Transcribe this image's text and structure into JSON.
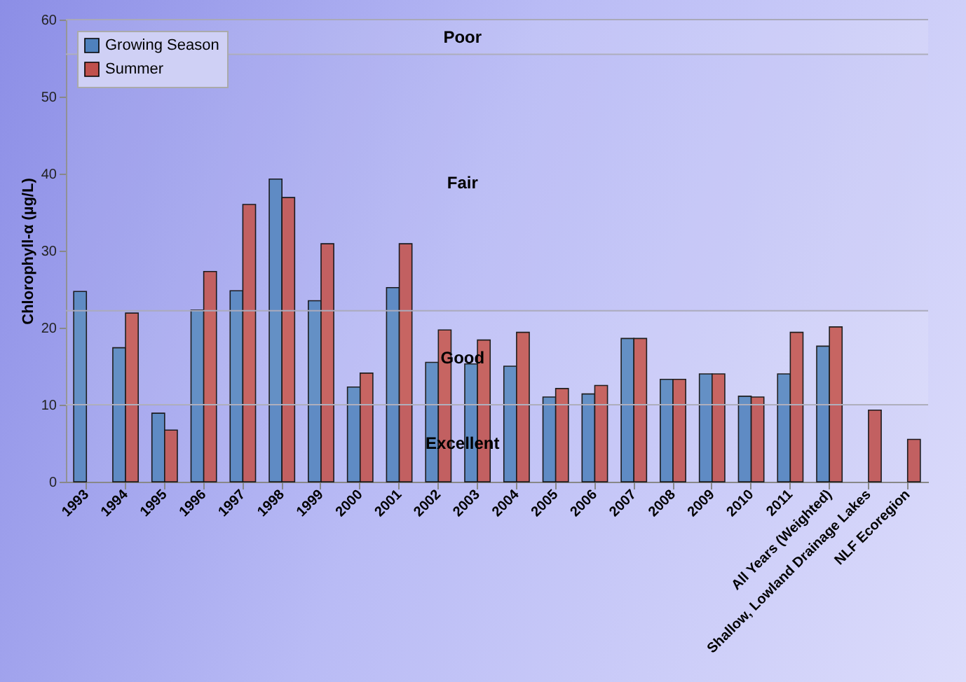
{
  "chart_data": {
    "type": "bar",
    "ylabel": "Chlorophyll-α (µg/L)",
    "categories": [
      "1993",
      "1994",
      "1995",
      "1996",
      "1997",
      "1998",
      "1999",
      "2000",
      "2001",
      "2002",
      "2003",
      "2004",
      "2005",
      "2006",
      "2007",
      "2008",
      "2009",
      "2010",
      "2011",
      "All Years (Weighted)",
      "Shallow, Lowland Drainage Lakes",
      "NLF Ecoregion"
    ],
    "series": [
      {
        "name": "Growing Season",
        "color": "#4f81bd",
        "values": [
          24.7,
          17.4,
          8.9,
          22.3,
          24.8,
          39.3,
          23.5,
          12.3,
          25.2,
          15.5,
          15.3,
          15.0,
          11.0,
          11.4,
          18.6,
          13.3,
          14.0,
          11.1,
          14.0,
          17.6,
          null,
          null
        ]
      },
      {
        "name": "Summer",
        "color": "#c0504d",
        "values": [
          null,
          21.9,
          6.7,
          27.3,
          36.0,
          36.9,
          30.9,
          14.1,
          30.9,
          19.7,
          18.4,
          19.4,
          12.1,
          12.5,
          18.6,
          13.3,
          14.0,
          11.0,
          19.4,
          20.1,
          9.3,
          5.5
        ]
      }
    ],
    "ylim": [
      0,
      60
    ],
    "yticks": [
      0,
      10,
      20,
      30,
      40,
      50,
      60
    ],
    "bands": [
      {
        "axis": "y",
        "from": 0,
        "to": 10,
        "label": "Excellent"
      },
      {
        "axis": "y",
        "from": 10,
        "to": 22.2,
        "label": "Good"
      },
      {
        "axis": "y",
        "from": 22.2,
        "to": 55.5,
        "label": "Fair"
      },
      {
        "axis": "y",
        "from": 55.5,
        "to": 60,
        "label": "Poor"
      }
    ],
    "legend": "top left"
  }
}
